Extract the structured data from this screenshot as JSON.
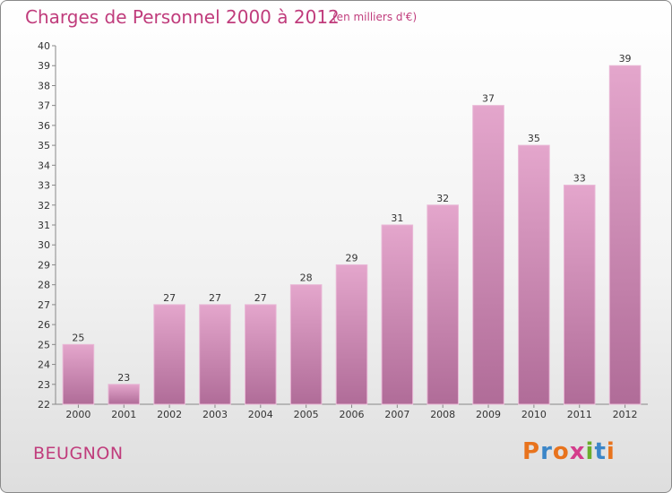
{
  "header": {
    "title": "Charges de Personnel 2000 à 2012",
    "subtitle": "(en milliers d'€)"
  },
  "footer": {
    "commune": "BEUGNON",
    "logo": "Proxiti"
  },
  "colors": {
    "accent": "#c03c7c",
    "bar_light": "#e4a6cc",
    "bar_dark": "#b06c98",
    "logo_letters": [
      "#e8731d",
      "#3b86c8",
      "#e8731d",
      "#d43c8c",
      "#6aad2b",
      "#3b86c8",
      "#e8731d"
    ]
  },
  "chart_data": {
    "type": "bar",
    "categories": [
      "2000",
      "2001",
      "2002",
      "2003",
      "2004",
      "2005",
      "2006",
      "2007",
      "2008",
      "2009",
      "2010",
      "2011",
      "2012"
    ],
    "values": [
      25,
      23,
      27,
      27,
      27,
      28,
      29,
      31,
      32,
      37,
      35,
      33,
      39
    ],
    "ylim": [
      22,
      40
    ],
    "yticks": [
      22,
      23,
      24,
      25,
      26,
      27,
      28,
      29,
      30,
      31,
      32,
      33,
      34,
      35,
      36,
      37,
      38,
      39,
      40
    ],
    "grid": false,
    "legend": "none"
  }
}
